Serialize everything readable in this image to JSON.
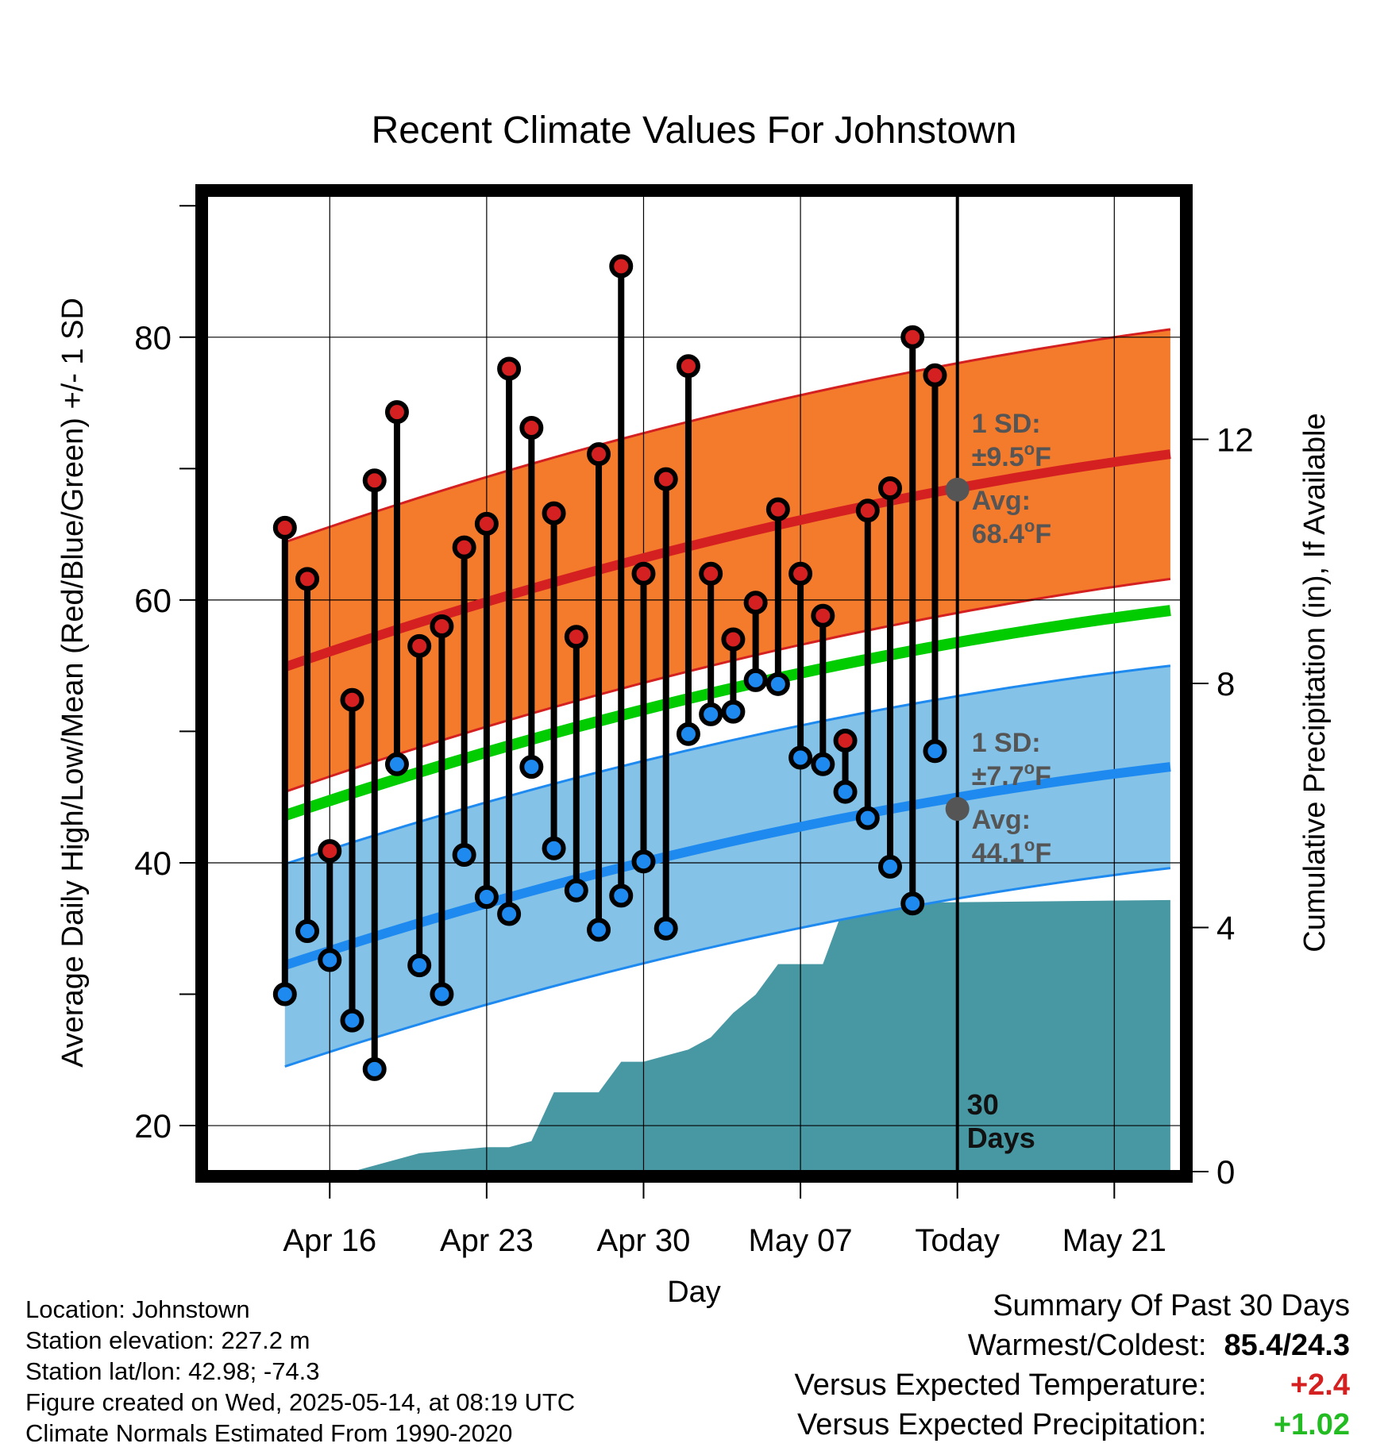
{
  "chart_data": {
    "type": "line",
    "title": "Recent Climate Values For Johnstown",
    "xlabel": "Day",
    "ylabel": "Average Daily High/Low/Mean (Red/Blue/Green) +/- 1 SD",
    "y2label": "Cumulative Precipitation (in), If Available",
    "x_day_range": [
      -33.5,
      10
    ],
    "ylim": [
      16.5,
      90.8
    ],
    "y2lim": [
      0,
      16
    ],
    "yticks": [
      20,
      40,
      60,
      80
    ],
    "y2ticks": [
      0,
      4,
      8,
      12
    ],
    "xtick_days": [
      -28,
      -21,
      -14,
      -7,
      0,
      7
    ],
    "xtick_labels": [
      "Apr 16",
      "Apr 23",
      "Apr 30",
      "May 07",
      "Today",
      "May 21"
    ],
    "grid": true,
    "colors": {
      "high": "#d42020",
      "high_band": "#f47a2c",
      "low": "#1e8af0",
      "low_band": "#84c2e8",
      "mean": "#00cc00",
      "precip": "#4898a4",
      "annotation": "#555555"
    },
    "normals": {
      "days": [
        -30,
        9.5
      ],
      "high_mean": [
        54.9,
        71.1
      ],
      "high_sd": 9.5,
      "low_mean": [
        32.2,
        47.3
      ],
      "low_sd": 7.7,
      "daily_mean": [
        43.6,
        59.2
      ]
    },
    "observed": {
      "days": [
        -30,
        -29,
        -28,
        -27,
        -26,
        -25,
        -24,
        -23,
        -22,
        -21,
        -20,
        -19,
        -18,
        -17,
        -16,
        -15,
        -14,
        -13,
        -12,
        -11,
        -10,
        -9,
        -8,
        -7,
        -6,
        -5,
        -4,
        -3,
        -2,
        -1
      ],
      "high": [
        65.5,
        61.6,
        40.9,
        52.4,
        69.1,
        74.3,
        56.5,
        58.0,
        64.0,
        65.8,
        77.6,
        73.1,
        66.6,
        57.2,
        71.1,
        85.4,
        62.0,
        69.2,
        77.8,
        62.0,
        57.0,
        59.8,
        66.9,
        62.0,
        58.8,
        49.3,
        66.8,
        68.5,
        80.0,
        77.1
      ],
      "low": [
        30.0,
        34.8,
        32.6,
        28.0,
        24.3,
        47.5,
        32.2,
        30.0,
        40.6,
        37.4,
        36.1,
        47.3,
        41.1,
        37.9,
        34.9,
        37.5,
        40.1,
        35.0,
        49.8,
        51.3,
        51.5,
        53.9,
        53.6,
        48.0,
        47.5,
        45.4,
        43.4,
        39.7,
        36.9,
        48.5
      ]
    },
    "precipitation": {
      "days": [
        -30,
        -27,
        -24,
        -21,
        -20,
        -19,
        -18,
        -17,
        -16,
        -15,
        -14,
        -13,
        -12,
        -11,
        -10,
        -9,
        -8,
        -7,
        -6,
        -5,
        -4,
        9.5
      ],
      "cumulative": [
        0.0,
        0.0,
        0.3,
        0.4,
        0.4,
        0.5,
        1.3,
        1.3,
        1.3,
        1.8,
        1.8,
        1.9,
        2.0,
        2.2,
        2.6,
        2.9,
        3.4,
        3.4,
        3.4,
        4.4,
        4.4,
        4.45
      ]
    },
    "annotations": {
      "high_sd_label": "1 SD:",
      "high_sd_value": "±9.5",
      "high_avg_label": "Avg:",
      "high_avg_value": "68.4",
      "low_sd_label": "1 SD:",
      "low_sd_value": "±7.7",
      "low_avg_label": "Avg:",
      "low_avg_value": "44.1",
      "degree_sign": "o",
      "unit": "F",
      "today_high_avg": 68.4,
      "today_low_avg": 44.1,
      "window_label_line1": "30",
      "window_label_line2": "Days"
    }
  },
  "station": {
    "location": "Location: Johnstown",
    "elevation": "Station elevation: 227.2 m",
    "latlon": "Station lat/lon: 42.98; -74.3",
    "created": "Figure created on Wed, 2025-05-14, at 08:19 UTC",
    "normals": "Climate Normals Estimated From 1990-2020"
  },
  "summary": {
    "heading": "Summary Of Past 30 Days",
    "warm_cold_label": "Warmest/Coldest:",
    "warm_cold_value": "85.4/24.3",
    "temp_label": "Versus Expected Temperature:",
    "temp_value": "+2.4",
    "temp_color": "#d42020",
    "precip_label": "Versus Expected Precipitation:",
    "precip_value": "+1.02",
    "precip_color": "#22bb22"
  }
}
